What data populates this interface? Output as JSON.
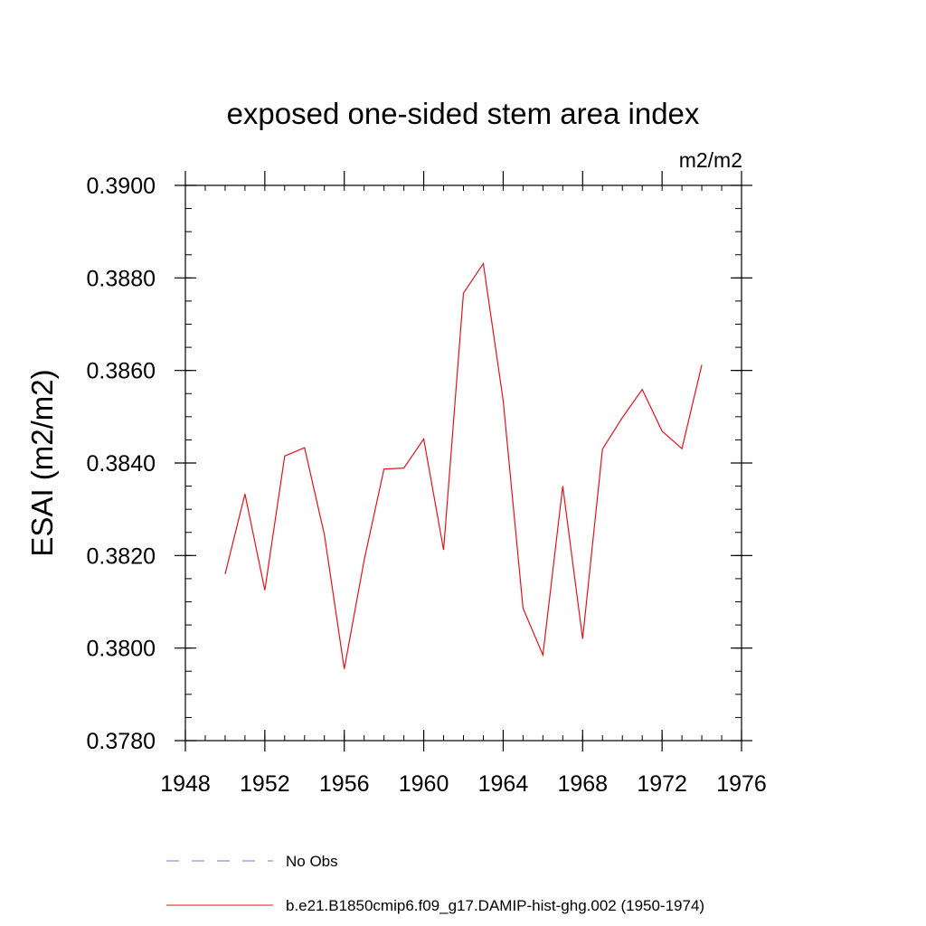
{
  "chart_data": {
    "type": "line",
    "title": "exposed one-sided stem area index",
    "units_label": "m2/m2",
    "xlabel": "",
    "ylabel": "ESAI  (m2/m2)",
    "xlim": [
      1948,
      1976
    ],
    "ylim": [
      0.378,
      0.39
    ],
    "x_ticks": [
      1948,
      1952,
      1956,
      1960,
      1964,
      1968,
      1972,
      1976
    ],
    "x_tick_labels": [
      "1948",
      "1952",
      "1956",
      "1960",
      "1964",
      "1968",
      "1972",
      "1976"
    ],
    "y_ticks": [
      0.378,
      0.38,
      0.382,
      0.384,
      0.386,
      0.388,
      0.39
    ],
    "y_tick_labels": [
      "0.3780",
      "0.3800",
      "0.3820",
      "0.3840",
      "0.3860",
      "0.3880",
      "0.3900"
    ],
    "grid": false,
    "legend_position": "bottom",
    "series": [
      {
        "name": "b.e21.B1850cmip6.f09_g17.DAMIP-hist-ghg.002 (1950-1974)",
        "color": "#e8101a",
        "style": "solid",
        "x": [
          1950,
          1951,
          1952,
          1953,
          1954,
          1955,
          1956,
          1957,
          1958,
          1959,
          1960,
          1961,
          1962,
          1963,
          1964,
          1965,
          1966,
          1967,
          1968,
          1969,
          1970,
          1971,
          1972,
          1973,
          1974
        ],
        "values": [
          0.3816,
          0.38333,
          0.38125,
          0.38415,
          0.38433,
          0.38245,
          0.37955,
          0.3819,
          0.38387,
          0.38389,
          0.38452,
          0.38212,
          0.38767,
          0.38831,
          0.38535,
          0.38086,
          0.37985,
          0.3835,
          0.3802,
          0.3843,
          0.38498,
          0.38559,
          0.38469,
          0.38431,
          0.38612
        ]
      }
    ],
    "legend": [
      {
        "label": "No Obs",
        "color": "#7777cc",
        "style": "dashed"
      },
      {
        "label": "b.e21.B1850cmip6.f09_g17.DAMIP-hist-ghg.002 (1950-1974)",
        "color": "#e8101a",
        "style": "solid"
      }
    ]
  }
}
